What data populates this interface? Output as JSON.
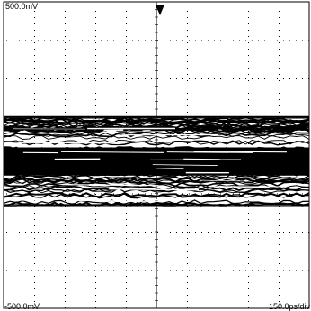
{
  "screen": {
    "top_scale": "500.0mV",
    "bottom_scale": "-500.0mV",
    "timebase": "150.0ps/div",
    "trigger_marker_icon": "down-triangle-icon"
  },
  "colors": {
    "background": "#ffffff",
    "trace": "#000000",
    "graticule": "#000000"
  },
  "chart_data": {
    "type": "line",
    "title": "",
    "xlabel": "",
    "ylabel": "",
    "xlim": [
      -750,
      750
    ],
    "ylim": [
      -500,
      500
    ],
    "x_unit": "ps",
    "y_unit": "mV",
    "horizontal_divisions": 10,
    "vertical_divisions": 8,
    "grid": true,
    "series": [
      {
        "band_top_mV": 125,
        "band_bottom_mV": -167,
        "dense_core_mV": [
          25,
          -67
        ],
        "trace_count": 60
      }
    ]
  }
}
